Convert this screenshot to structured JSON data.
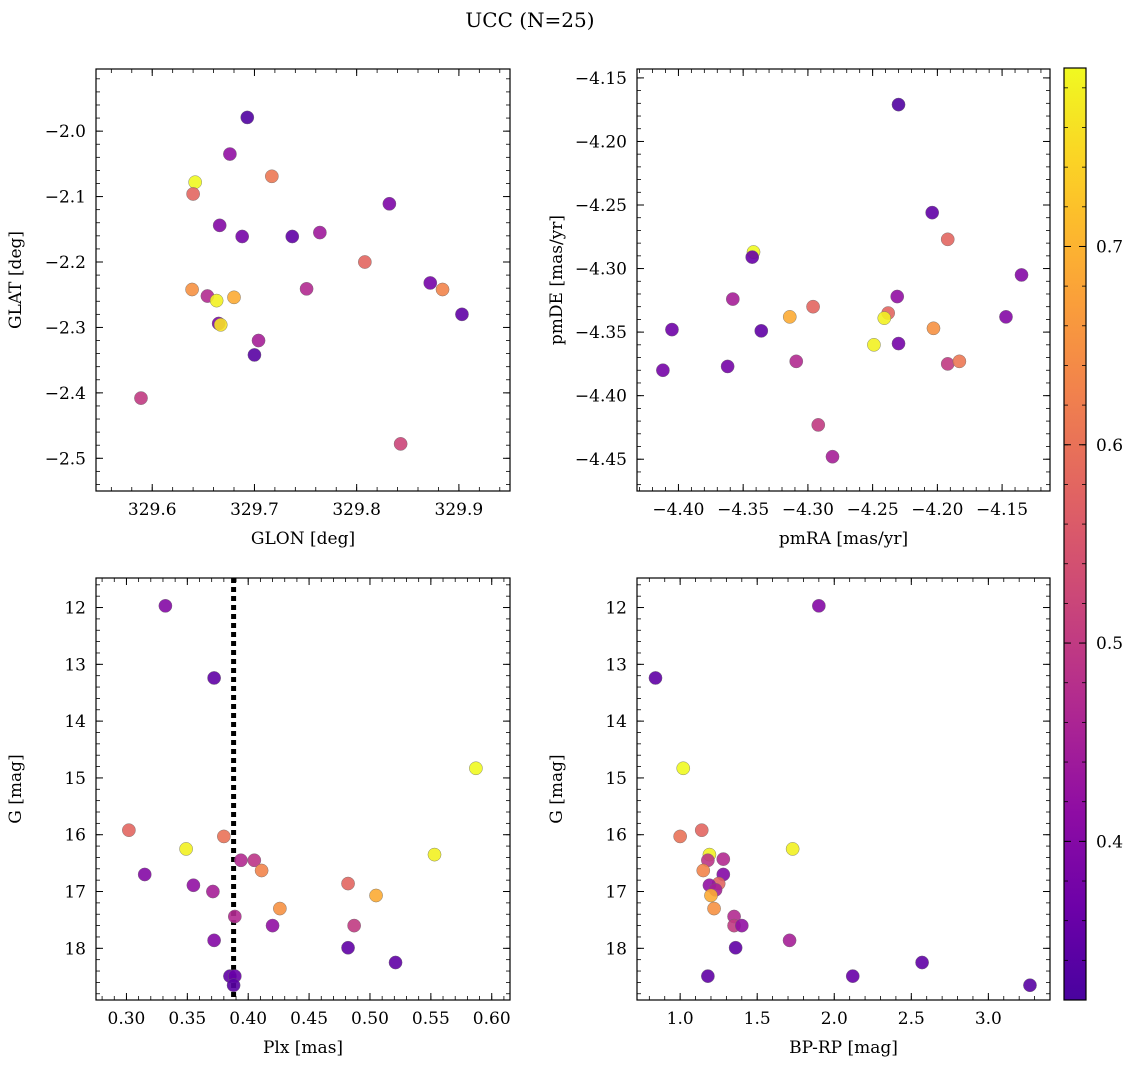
{
  "title": "UCC (N=25)",
  "colorbar": {
    "range": [
      0.32,
      0.79
    ],
    "ticks": [
      0.4,
      0.5,
      0.6,
      0.7
    ],
    "tick_labels": [
      "0.4",
      "0.5",
      "0.6",
      "0.7"
    ],
    "colormap": "plasma"
  },
  "chart_data": [
    {
      "type": "scatter",
      "id": "glon-glat",
      "xlabel": "GLON [deg]",
      "ylabel": "GLAT [deg]",
      "xlim": [
        329.545,
        329.95
      ],
      "ylim": [
        -2.55,
        -1.905
      ],
      "xticks": [
        329.6,
        329.7,
        329.8,
        329.9
      ],
      "xtick_labels": [
        "329.6",
        "329.7",
        "329.8",
        "329.9"
      ],
      "yticks": [
        -2.0,
        -2.1,
        -2.2,
        -2.3,
        -2.4,
        -2.5
      ],
      "ytick_labels": [
        "−2.0",
        "−2.1",
        "−2.2",
        "−2.3",
        "−2.4",
        "−2.5"
      ],
      "points": [
        {
          "x": 329.693,
          "y": -1.979,
          "c": 0.33
        },
        {
          "x": 329.676,
          "y": -2.035,
          "c": 0.42
        },
        {
          "x": 329.717,
          "y": -2.069,
          "c": 0.61
        },
        {
          "x": 329.642,
          "y": -2.078,
          "c": 0.79
        },
        {
          "x": 329.64,
          "y": -2.096,
          "c": 0.58
        },
        {
          "x": 329.832,
          "y": -2.111,
          "c": 0.39
        },
        {
          "x": 329.666,
          "y": -2.144,
          "c": 0.4
        },
        {
          "x": 329.688,
          "y": -2.161,
          "c": 0.38
        },
        {
          "x": 329.737,
          "y": -2.161,
          "c": 0.35
        },
        {
          "x": 329.764,
          "y": -2.155,
          "c": 0.44
        },
        {
          "x": 329.808,
          "y": -2.2,
          "c": 0.58
        },
        {
          "x": 329.872,
          "y": -2.232,
          "c": 0.38
        },
        {
          "x": 329.884,
          "y": -2.242,
          "c": 0.63
        },
        {
          "x": 329.639,
          "y": -2.242,
          "c": 0.65
        },
        {
          "x": 329.654,
          "y": -2.252,
          "c": 0.47
        },
        {
          "x": 329.68,
          "y": -2.254,
          "c": 0.69
        },
        {
          "x": 329.663,
          "y": -2.259,
          "c": 0.78
        },
        {
          "x": 329.751,
          "y": -2.241,
          "c": 0.47
        },
        {
          "x": 329.903,
          "y": -2.28,
          "c": 0.35
        },
        {
          "x": 329.665,
          "y": -2.294,
          "c": 0.39
        },
        {
          "x": 329.667,
          "y": -2.296,
          "c": 0.76
        },
        {
          "x": 329.704,
          "y": -2.32,
          "c": 0.45
        },
        {
          "x": 329.7,
          "y": -2.342,
          "c": 0.34
        },
        {
          "x": 329.589,
          "y": -2.408,
          "c": 0.5
        },
        {
          "x": 329.843,
          "y": -2.478,
          "c": 0.52
        }
      ]
    },
    {
      "type": "scatter",
      "id": "pmra-pmde",
      "xlabel": "pmRA [mas/yr]",
      "ylabel": "pmDE [mas/yr]",
      "xlim": [
        -4.432,
        -4.113
      ],
      "ylim": [
        -4.475,
        -4.143
      ],
      "xticks": [
        -4.4,
        -4.35,
        -4.3,
        -4.25,
        -4.2,
        -4.15
      ],
      "xtick_labels": [
        "−4.40",
        "−4.35",
        "−4.30",
        "−4.25",
        "−4.20",
        "−4.15"
      ],
      "yticks": [
        -4.15,
        -4.2,
        -4.25,
        -4.3,
        -4.35,
        -4.4,
        -4.45
      ],
      "ytick_labels": [
        "−4.15",
        "−4.20",
        "−4.25",
        "−4.30",
        "−4.35",
        "−4.40",
        "−4.45"
      ],
      "points": [
        {
          "x": -4.23,
          "y": -4.171,
          "c": 0.33
        },
        {
          "x": -4.204,
          "y": -4.256,
          "c": 0.35
        },
        {
          "x": -4.192,
          "y": -4.277,
          "c": 0.58
        },
        {
          "x": -4.342,
          "y": -4.287,
          "c": 0.79
        },
        {
          "x": -4.343,
          "y": -4.291,
          "c": 0.36
        },
        {
          "x": -4.135,
          "y": -4.305,
          "c": 0.4
        },
        {
          "x": -4.358,
          "y": -4.324,
          "c": 0.45
        },
        {
          "x": -4.231,
          "y": -4.322,
          "c": 0.42
        },
        {
          "x": -4.296,
          "y": -4.33,
          "c": 0.58
        },
        {
          "x": -4.238,
          "y": -4.335,
          "c": 0.58
        },
        {
          "x": -4.314,
          "y": -4.338,
          "c": 0.69
        },
        {
          "x": -4.241,
          "y": -4.339,
          "c": 0.78
        },
        {
          "x": -4.147,
          "y": -4.338,
          "c": 0.4
        },
        {
          "x": -4.405,
          "y": -4.348,
          "c": 0.37
        },
        {
          "x": -4.336,
          "y": -4.349,
          "c": 0.35
        },
        {
          "x": -4.203,
          "y": -4.347,
          "c": 0.65
        },
        {
          "x": -4.23,
          "y": -4.359,
          "c": 0.38
        },
        {
          "x": -4.249,
          "y": -4.36,
          "c": 0.78
        },
        {
          "x": -4.309,
          "y": -4.373,
          "c": 0.47
        },
        {
          "x": -4.192,
          "y": -4.375,
          "c": 0.5
        },
        {
          "x": -4.183,
          "y": -4.373,
          "c": 0.61
        },
        {
          "x": -4.362,
          "y": -4.377,
          "c": 0.38
        },
        {
          "x": -4.412,
          "y": -4.38,
          "c": 0.38
        },
        {
          "x": -4.292,
          "y": -4.423,
          "c": 0.5
        },
        {
          "x": -4.281,
          "y": -4.448,
          "c": 0.45
        }
      ]
    },
    {
      "type": "scatter",
      "id": "plx-g",
      "xlabel": "Plx [mas]",
      "ylabel": "G [mag]",
      "xlim": [
        0.275,
        0.615
      ],
      "ylim": [
        18.91,
        11.48
      ],
      "y_inverted": true,
      "xticks": [
        0.3,
        0.35,
        0.4,
        0.45,
        0.5,
        0.55,
        0.6
      ],
      "xtick_labels": [
        "0.30",
        "0.35",
        "0.40",
        "0.45",
        "0.50",
        "0.55",
        "0.60"
      ],
      "yticks": [
        12,
        13,
        14,
        15,
        16,
        17,
        18
      ],
      "ytick_labels": [
        "12",
        "13",
        "14",
        "15",
        "16",
        "17",
        "18"
      ],
      "vline": {
        "x": 0.388,
        "style": "dotted"
      },
      "points": [
        {
          "x": 0.332,
          "y": 11.97,
          "c": 0.4
        },
        {
          "x": 0.372,
          "y": 13.24,
          "c": 0.35
        },
        {
          "x": 0.587,
          "y": 14.83,
          "c": 0.79
        },
        {
          "x": 0.302,
          "y": 15.92,
          "c": 0.58
        },
        {
          "x": 0.38,
          "y": 16.03,
          "c": 0.6
        },
        {
          "x": 0.349,
          "y": 16.25,
          "c": 0.78
        },
        {
          "x": 0.553,
          "y": 16.35,
          "c": 0.78
        },
        {
          "x": 0.394,
          "y": 16.45,
          "c": 0.47
        },
        {
          "x": 0.405,
          "y": 16.45,
          "c": 0.49
        },
        {
          "x": 0.411,
          "y": 16.63,
          "c": 0.63
        },
        {
          "x": 0.315,
          "y": 16.7,
          "c": 0.4
        },
        {
          "x": 0.482,
          "y": 16.86,
          "c": 0.58
        },
        {
          "x": 0.355,
          "y": 16.89,
          "c": 0.42
        },
        {
          "x": 0.371,
          "y": 17.0,
          "c": 0.45
        },
        {
          "x": 0.505,
          "y": 17.07,
          "c": 0.69
        },
        {
          "x": 0.426,
          "y": 17.3,
          "c": 0.65
        },
        {
          "x": 0.389,
          "y": 17.44,
          "c": 0.47
        },
        {
          "x": 0.487,
          "y": 17.6,
          "c": 0.5
        },
        {
          "x": 0.42,
          "y": 17.6,
          "c": 0.42
        },
        {
          "x": 0.372,
          "y": 17.86,
          "c": 0.4
        },
        {
          "x": 0.482,
          "y": 17.99,
          "c": 0.35
        },
        {
          "x": 0.521,
          "y": 18.25,
          "c": 0.35
        },
        {
          "x": 0.385,
          "y": 18.49,
          "c": 0.35
        },
        {
          "x": 0.389,
          "y": 18.49,
          "c": 0.36
        },
        {
          "x": 0.388,
          "y": 18.65,
          "c": 0.34
        }
      ]
    },
    {
      "type": "scatter",
      "id": "bprp-g",
      "xlabel": "BP-RP [mag]",
      "ylabel": "G [mag]",
      "xlim": [
        0.72,
        3.4
      ],
      "ylim": [
        18.91,
        11.48
      ],
      "y_inverted": true,
      "xticks": [
        1.0,
        1.5,
        2.0,
        2.5,
        3.0
      ],
      "xtick_labels": [
        "1.0",
        "1.5",
        "2.0",
        "2.5",
        "3.0"
      ],
      "yticks": [
        12,
        13,
        14,
        15,
        16,
        17,
        18
      ],
      "ytick_labels": [
        "12",
        "13",
        "14",
        "15",
        "16",
        "17",
        "18"
      ],
      "points": [
        {
          "x": 1.9,
          "y": 11.97,
          "c": 0.4
        },
        {
          "x": 0.84,
          "y": 13.24,
          "c": 0.35
        },
        {
          "x": 1.02,
          "y": 14.83,
          "c": 0.79
        },
        {
          "x": 1.14,
          "y": 15.92,
          "c": 0.58
        },
        {
          "x": 1.0,
          "y": 16.03,
          "c": 0.6
        },
        {
          "x": 1.73,
          "y": 16.25,
          "c": 0.78
        },
        {
          "x": 1.19,
          "y": 16.35,
          "c": 0.78
        },
        {
          "x": 1.18,
          "y": 16.45,
          "c": 0.49
        },
        {
          "x": 1.28,
          "y": 16.43,
          "c": 0.47
        },
        {
          "x": 1.15,
          "y": 16.63,
          "c": 0.63
        },
        {
          "x": 1.28,
          "y": 16.7,
          "c": 0.4
        },
        {
          "x": 1.25,
          "y": 16.86,
          "c": 0.58
        },
        {
          "x": 1.19,
          "y": 16.89,
          "c": 0.42
        },
        {
          "x": 1.23,
          "y": 16.97,
          "c": 0.45
        },
        {
          "x": 1.2,
          "y": 17.07,
          "c": 0.69
        },
        {
          "x": 1.22,
          "y": 17.3,
          "c": 0.65
        },
        {
          "x": 1.35,
          "y": 17.44,
          "c": 0.47
        },
        {
          "x": 1.35,
          "y": 17.6,
          "c": 0.5
        },
        {
          "x": 1.4,
          "y": 17.6,
          "c": 0.42
        },
        {
          "x": 1.71,
          "y": 17.86,
          "c": 0.45
        },
        {
          "x": 1.36,
          "y": 17.99,
          "c": 0.35
        },
        {
          "x": 2.57,
          "y": 18.25,
          "c": 0.35
        },
        {
          "x": 1.18,
          "y": 18.49,
          "c": 0.35
        },
        {
          "x": 2.12,
          "y": 18.49,
          "c": 0.36
        },
        {
          "x": 3.27,
          "y": 18.65,
          "c": 0.34
        }
      ]
    }
  ]
}
